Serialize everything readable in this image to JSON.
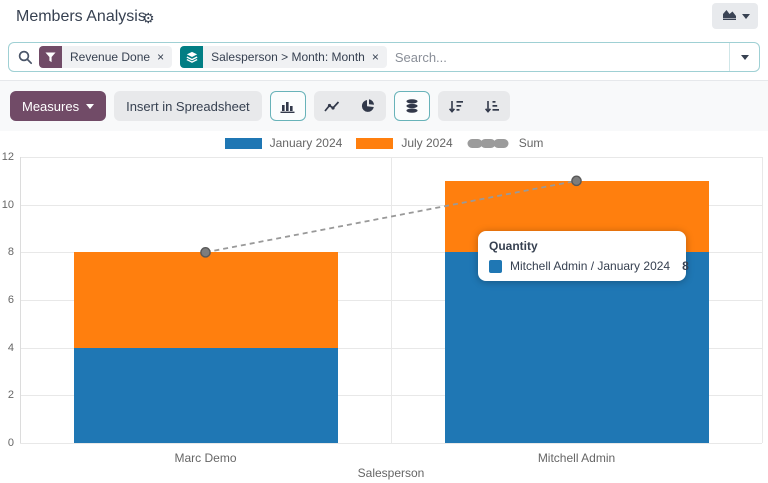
{
  "header": {
    "title": "Members Analysis"
  },
  "search": {
    "placeholder": "Search...",
    "facets": [
      {
        "kind": "filter",
        "icon": "filter-icon",
        "label": "Revenue Done",
        "remove": "×"
      },
      {
        "kind": "groupby",
        "icon": "layers-icon",
        "label": "Salesperson > Month: Month",
        "remove": "×"
      }
    ]
  },
  "toolbar": {
    "measures_label": "Measures",
    "insert_label": "Insert in Spreadsheet",
    "chart_type_buttons": [
      {
        "name": "bar-chart",
        "active": true
      },
      {
        "name": "line-chart",
        "active": false
      },
      {
        "name": "pie-chart",
        "active": false
      },
      {
        "name": "stacked",
        "active": true
      },
      {
        "name": "sort-desc",
        "active": false
      },
      {
        "name": "sort-asc",
        "active": false
      }
    ]
  },
  "tooltip": {
    "title": "Quantity",
    "label": "Mitchell Admin / January 2024",
    "value": "8",
    "color": "#1f77b4"
  },
  "chart_data": {
    "type": "bar",
    "stacked": true,
    "categories": [
      "Marc Demo",
      "Mitchell Admin"
    ],
    "series": [
      {
        "name": "January 2024",
        "type": "bar",
        "color": "#1f77b4",
        "values": [
          4,
          8
        ]
      },
      {
        "name": "July 2024",
        "type": "bar",
        "color": "#ff7f0e",
        "values": [
          4,
          3
        ]
      },
      {
        "name": "Sum",
        "type": "line",
        "dashed": true,
        "color": "#999999",
        "marker_color": "#7d7d7d",
        "marker_border": "#595959",
        "values": [
          8,
          11
        ]
      }
    ],
    "title": "",
    "xlabel": "Salesperson",
    "ylabel": "",
    "ylim": [
      0,
      12
    ],
    "yticks": [
      0,
      2,
      4,
      6,
      8,
      10,
      12
    ],
    "grid": true,
    "legend_position": "top"
  },
  "colors": {
    "accent_purple": "#714b67",
    "accent_teal": "#017e84",
    "selected_border": "#68b3b9",
    "grid_line": "#e8e8e8",
    "tick_text": "#666666"
  }
}
